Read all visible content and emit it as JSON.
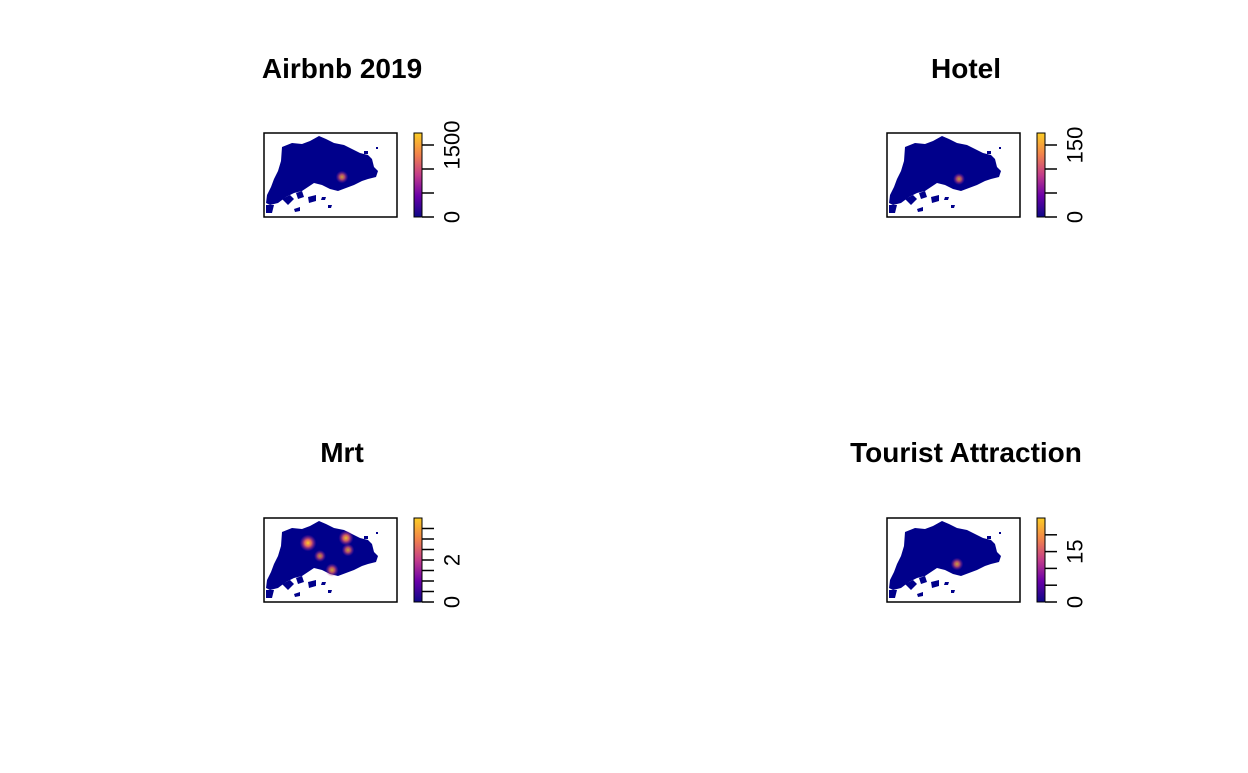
{
  "chart_data": [
    {
      "type": "heatmap",
      "title": "Airbnb 2019",
      "legend": {
        "min": 0,
        "max": 1750,
        "ticks": [
          0,
          500,
          1000,
          1500
        ],
        "labeled_ticks": [
          "0",
          "1500"
        ]
      },
      "hotspots": [
        {
          "value": 0.55
        }
      ]
    },
    {
      "type": "heatmap",
      "title": "Hotel",
      "legend": {
        "min": 0,
        "max": 175,
        "ticks": [
          0,
          50,
          100,
          150
        ],
        "labeled_ticks": [
          "0",
          "150"
        ]
      },
      "hotspots": [
        {
          "value": 0.5
        }
      ]
    },
    {
      "type": "heatmap",
      "title": "Mrt",
      "legend": {
        "min": 0,
        "max": 4,
        "ticks": [
          0,
          0.5,
          1,
          1.5,
          2,
          2.5,
          3,
          3.5
        ],
        "labeled_ticks": [
          "0",
          "2"
        ]
      },
      "hotspots": [
        {
          "value": 0.9
        },
        {
          "value": 0.75
        },
        {
          "value": 0.6
        },
        {
          "value": 0.55
        },
        {
          "value": 0.5
        }
      ]
    },
    {
      "type": "heatmap",
      "title": "Tourist Attraction",
      "legend": {
        "min": 0,
        "max": 25,
        "ticks": [
          0,
          5,
          10,
          15,
          20
        ],
        "labeled_ticks": [
          "0",
          "15"
        ]
      },
      "hotspots": [
        {
          "value": 0.55
        }
      ]
    }
  ],
  "colors": {
    "background": "#ffffff",
    "map_base": "#00008b",
    "palette": [
      "#0d0887",
      "#3a0593",
      "#6a00a8",
      "#9c179e",
      "#c33c8a",
      "#e16462",
      "#f2844b",
      "#fca636",
      "#fccd25",
      "#f0f921"
    ]
  }
}
